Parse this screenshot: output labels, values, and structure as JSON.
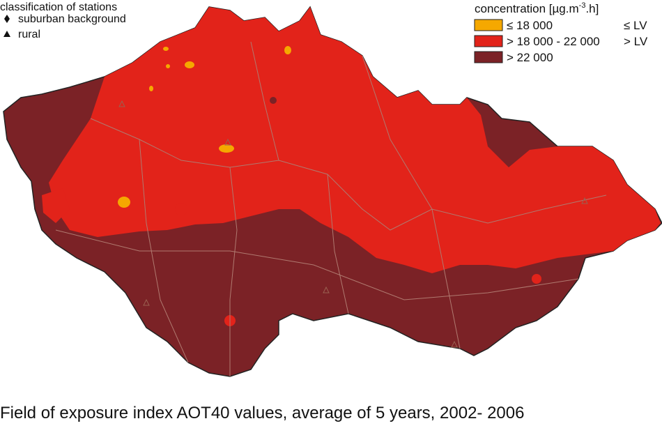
{
  "stations": {
    "title": "classification of stations",
    "items": [
      {
        "label": "suburban background"
      },
      {
        "label": "rural"
      }
    ]
  },
  "legend": {
    "title": {
      "main": "concentration [µg.m",
      "superscript": "-3",
      "end": ".h]"
    },
    "items": [
      {
        "label": "≤ 18 000",
        "limit": "≤ LV",
        "color": "#f5a800"
      },
      {
        "label": "> 18 000 - 22 000",
        "limit": "> LV",
        "color": "#e2231a"
      },
      {
        "label": "> 22 000",
        "limit": "",
        "color": "#7b2226"
      }
    ]
  },
  "caption": "Field of exposure index AOT40 values, average of 5 years, 2002- 2006"
}
